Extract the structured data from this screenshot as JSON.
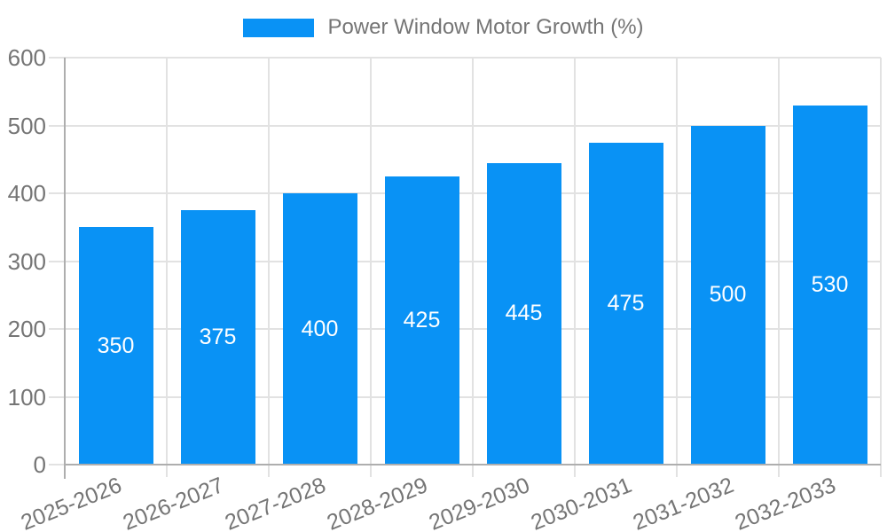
{
  "legend": {
    "label": "Power Window Motor Growth (%)"
  },
  "chart_data": {
    "type": "bar",
    "title": "Power Window Motor Growth (%)",
    "series_name": "Power Window Motor Growth (%)",
    "categories": [
      "2025-2026",
      "2026-2027",
      "2027-2028",
      "2028-2029",
      "2029-2030",
      "2030-2031",
      "2031-2032",
      "2032-2033"
    ],
    "values": [
      350,
      375,
      400,
      425,
      445,
      475,
      500,
      530
    ],
    "value_labels": [
      "350",
      "375",
      "400",
      "425",
      "445",
      "475",
      "500",
      "530"
    ],
    "xlabel": "",
    "ylabel": "",
    "ylim": [
      0,
      600
    ],
    "yticks": [
      0,
      100,
      200,
      300,
      400,
      500,
      600
    ],
    "grid": true,
    "legend_position": "top",
    "colors": {
      "bar": "#0992f5",
      "grid": "#e2e2e2",
      "axis": "#aeaeae",
      "tick_label": "#757575",
      "value_label": "#ffffff"
    }
  }
}
